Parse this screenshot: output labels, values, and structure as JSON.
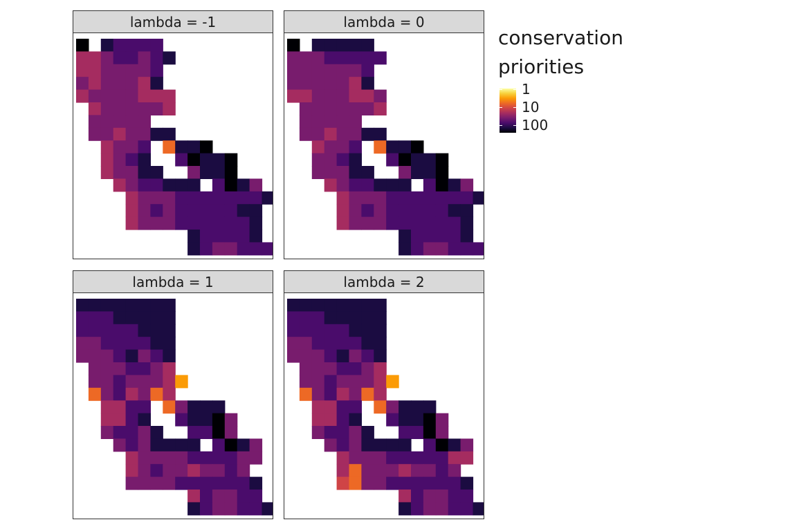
{
  "chart_data": {
    "type": "heatmap",
    "facets": [
      {
        "label": "lambda = -1",
        "grid": [
          "9 87777..........",
          "55677678.........",
          "5566667c.........",
          "6566658c.........",
          "56666555.........",
          ".5666665.........",
          ".66666ab.........",
          ".6656688.........",
          "..5667a3889......",
          "..5678aa79889....",
          "..56688ab6889....",
          "...5677888b7986..",
          "....566677777778.",
          "....56767777788..",
          "....56667777778..",
          ".........877778..",
          ".........8766777."
        ]
      },
      {
        "label": "lambda = 0",
        "grid": [
          "9 88888..........",
          "66677777.........",
          "6666667c.........",
          "6666658c.........",
          "55666556.........",
          ".6666665.........",
          ".66666ab.........",
          ".6656688.........",
          "..5667a3889......",
          "..6678ab79889....",
          "..66688ab6889....",
          "...5677888b7986..",
          "....566677777778.",
          "....56767777788..",
          "....56667777778..",
          ".........877778..",
          ".........8766777."
        ]
      },
      {
        "label": "lambda = 1",
        "grid": [
          "88888888.........",
          "77788888.........",
          "77777888.........",
          "66777788.........",
          "66678678.........",
          ".6667765.........",
          ".66766652........",
          ".3675635.........",
          "..5577a36888.....",
          "..5578ab78896....",
          "..67768ac7796....",
          "...6768888b7986..",
          "....56666777766..",
          "....5676656676...",
          "....66667777778..",
          ".........576677..",
          ".........8766778."
        ]
      },
      {
        "label": "lambda = 2",
        "grid": [
          "88888888.........",
          "77788888.........",
          "77777888.........",
          "66777788.........",
          "66678678.........",
          ".6667765.........",
          ".66766652........",
          ".3675635.........",
          "..5577a36888.....",
          "..5578ab78896....",
          "..67768ac7796....",
          "...6768888b7986..",
          "....56667777755..",
          "....5366656676...",
          "....43667777778..",
          ".........576677..",
          ".........8766778."
        ]
      }
    ],
    "color_scale": {
      "title": "conservation priorities",
      "scale": "log10",
      "breaks": [
        1,
        10,
        100
      ],
      "break_labels": [
        "1",
        "10",
        "100"
      ],
      "palette_name": "inferno (reversed: 1 = light yellow, 100 = black)",
      "palette": [
        "#000004",
        "#1b0c41",
        "#4a0c6b",
        "#781c6d",
        "#a52c60",
        "#cf4446",
        "#ed6925",
        "#fb9b06",
        "#f7d13d",
        "#fcffa4"
      ]
    }
  },
  "legend": {
    "title_line1": "conservation",
    "title_line2": "priorities",
    "labels": [
      "1",
      "10",
      "100"
    ]
  }
}
